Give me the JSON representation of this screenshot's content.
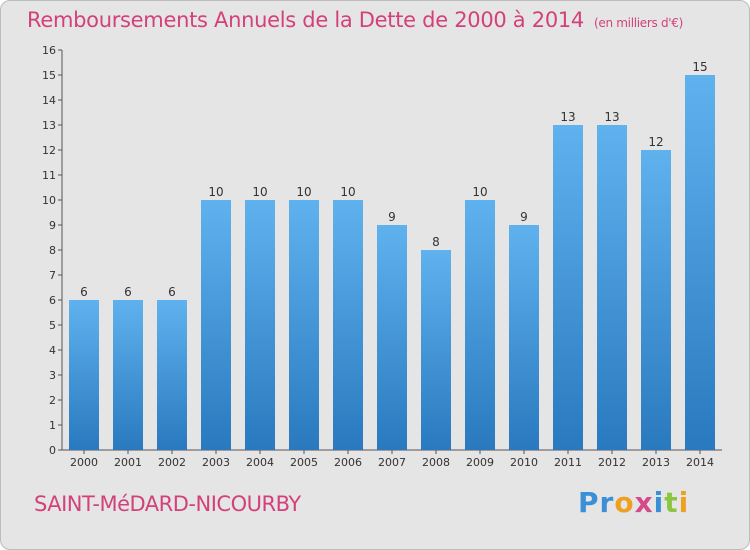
{
  "chart_data": {
    "type": "bar",
    "title": "Remboursements Annuels de la Dette de 2000 à 2014",
    "unit": "(en milliers d'€)",
    "categories": [
      "2000",
      "2001",
      "2002",
      "2003",
      "2004",
      "2005",
      "2006",
      "2007",
      "2008",
      "2009",
      "2010",
      "2011",
      "2012",
      "2013",
      "2014"
    ],
    "values": [
      6,
      6,
      6,
      10,
      10,
      10,
      10,
      9,
      8,
      10,
      9,
      13,
      13,
      12,
      15
    ],
    "yticks": [
      0,
      1,
      2,
      3,
      4,
      5,
      6,
      7,
      8,
      9,
      10,
      11,
      12,
      13,
      14,
      15,
      16
    ],
    "ylim": [
      0,
      16
    ],
    "grid": false,
    "bar_color": "#4a9fe0"
  },
  "location": "SAINT-MéDARD-NICOURBY",
  "logo": {
    "text": "Proxiti",
    "letters": [
      "P",
      "r",
      "o",
      "x",
      "i",
      "t",
      "i"
    ],
    "colors": [
      "#3a8fd6",
      "#3a8fd6",
      "#f0a020",
      "#d44a8a",
      "#3a8fd6",
      "#8cc63f",
      "#f0a020"
    ]
  }
}
